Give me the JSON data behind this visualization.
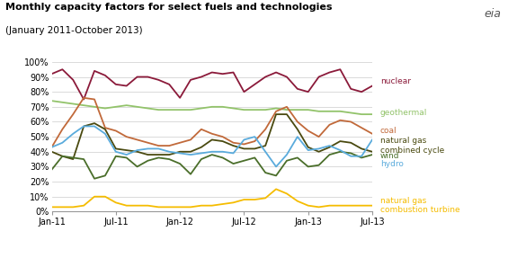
{
  "title": "Monthly capacity factors for select fuels and technologies",
  "subtitle": "(January 2011-October 2013)",
  "x_labels": [
    "Jan-11",
    "Jul-11",
    "Jan-12",
    "Jul-12",
    "Jan-13",
    "Jul-13"
  ],
  "x_tick_positions": [
    0,
    6,
    12,
    18,
    24,
    30
  ],
  "series": {
    "nuclear": {
      "color": "#8B1A3A",
      "values": [
        92,
        95,
        88,
        75,
        94,
        91,
        85,
        84,
        90,
        90,
        88,
        85,
        76,
        88,
        90,
        93,
        92,
        93,
        80,
        85,
        90,
        93,
        90,
        82,
        80,
        90,
        93,
        95,
        82,
        80,
        84
      ]
    },
    "geothermal": {
      "color": "#92C36A",
      "values": [
        74,
        73,
        72,
        71,
        70,
        69,
        70,
        71,
        70,
        69,
        68,
        68,
        68,
        68,
        69,
        70,
        70,
        69,
        68,
        68,
        68,
        69,
        68,
        68,
        68,
        67,
        67,
        67,
        66,
        65,
        65
      ]
    },
    "coal": {
      "color": "#C1693A",
      "values": [
        43,
        55,
        65,
        76,
        75,
        56,
        54,
        50,
        48,
        46,
        44,
        44,
        46,
        48,
        55,
        52,
        50,
        46,
        45,
        47,
        55,
        67,
        70,
        60,
        54,
        50,
        58,
        61,
        60,
        56,
        52
      ]
    },
    "natural_gas_cc": {
      "color": "#4A4A10",
      "values": [
        40,
        37,
        35,
        57,
        59,
        55,
        42,
        41,
        40,
        38,
        38,
        38,
        40,
        40,
        43,
        48,
        47,
        44,
        42,
        42,
        44,
        65,
        65,
        55,
        43,
        40,
        43,
        47,
        46,
        42,
        40
      ]
    },
    "wind": {
      "color": "#4A6E2A",
      "values": [
        28,
        37,
        36,
        35,
        22,
        24,
        37,
        36,
        30,
        34,
        36,
        35,
        32,
        25,
        35,
        38,
        36,
        32,
        34,
        36,
        26,
        24,
        34,
        36,
        30,
        31,
        38,
        40,
        39,
        36,
        38
      ]
    },
    "hydro": {
      "color": "#5AABDC",
      "values": [
        43,
        46,
        52,
        57,
        57,
        52,
        40,
        38,
        41,
        42,
        42,
        40,
        39,
        38,
        39,
        40,
        40,
        39,
        48,
        50,
        40,
        30,
        38,
        50,
        41,
        42,
        44,
        41,
        37,
        37,
        48
      ]
    },
    "natural_gas_ct": {
      "color": "#F5BC00",
      "values": [
        3,
        3,
        3,
        4,
        10,
        10,
        6,
        4,
        4,
        4,
        3,
        3,
        3,
        3,
        4,
        4,
        5,
        6,
        8,
        8,
        9,
        15,
        12,
        7,
        4,
        3,
        4,
        4,
        4,
        4,
        4
      ]
    }
  },
  "legend_entries": [
    {
      "key": "nuclear",
      "label": "nuclear",
      "y": 87
    },
    {
      "key": "geothermal",
      "label": "geothermal",
      "y": 66
    },
    {
      "key": "coal",
      "label": "coal",
      "y": 54
    },
    {
      "key": "natural_gas_cc",
      "label": "natural gas\ncombined cycle",
      "y": 44
    },
    {
      "key": "wind",
      "label": "wind",
      "y": 37
    },
    {
      "key": "hydro",
      "label": "hydro",
      "y": 32
    },
    {
      "key": "natural_gas_ct",
      "label": "natural gas\ncombustion turbine",
      "y": 4
    }
  ],
  "ylim": [
    0,
    100
  ],
  "yticks": [
    0,
    10,
    20,
    30,
    40,
    50,
    60,
    70,
    80,
    90,
    100
  ]
}
